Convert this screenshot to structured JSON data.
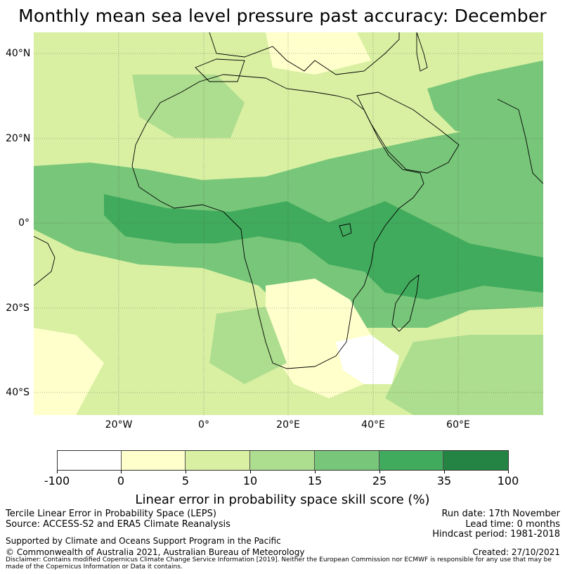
{
  "title": "Monthly mean sea level pressure past accuracy: December",
  "map": {
    "latitude_labels": [
      "40°N",
      "20°N",
      "0°",
      "20°S",
      "40°S"
    ],
    "longitude_labels": [
      "20°W",
      "0°",
      "20°E",
      "40°E",
      "60°E"
    ]
  },
  "colorbar": {
    "title": "Linear error in probability space skill score (%)",
    "ticks": [
      "-100",
      "0",
      "5",
      "10",
      "15",
      "25",
      "35",
      "100"
    ],
    "colors": [
      "#ffffff",
      "#ffffcc",
      "#d9f0a3",
      "#addd8e",
      "#78c679",
      "#41ab5d",
      "#238443"
    ]
  },
  "footer": {
    "method": "Tercile Linear Error in Probability Space (LEPS)",
    "source": "Source: ACCESS-S2 and ERA5 Climate Reanalysis",
    "run_date": "Run date: 17th November",
    "lead_time": "Lead time: 0 months",
    "hindcast": "Hindcast period: 1981-2018",
    "support": "Supported by Climate and Oceans Support Program in the Pacific",
    "copyright": "© Commonwealth of Australia 2021, Australian Bureau of Meteorology",
    "created": "Created: 27/10/2021",
    "disclaimer": "Disclaimer: Contains modified Copernicus Climate Change Service Information [2019]. Neither the European Commission nor ECMWF is responsible for any use that may be made of the Copernicus Information or Data it contains."
  }
}
